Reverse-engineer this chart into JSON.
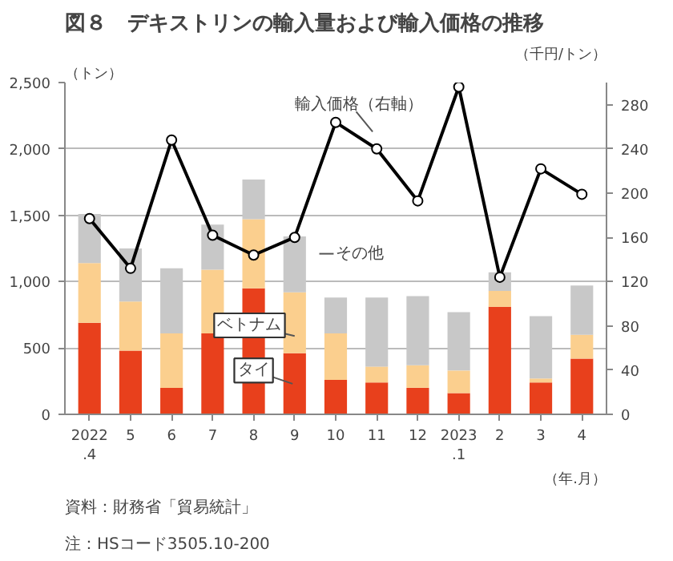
{
  "chart_data": {
    "type": "bar",
    "stacked": true,
    "title": "図８　デキストリンの輸入量および輸入価格の推移",
    "categories": [
      "2022\n.4",
      "5",
      "6",
      "7",
      "8",
      "9",
      "10",
      "11",
      "12",
      "2023\n.1",
      "2",
      "3",
      "4"
    ],
    "series": [
      {
        "name": "タイ",
        "color": "#e8401c",
        "values": [
          690,
          480,
          200,
          610,
          950,
          460,
          260,
          240,
          200,
          160,
          810,
          240,
          420
        ]
      },
      {
        "name": "ベトナム",
        "color": "#fbcf8e",
        "values": [
          450,
          370,
          410,
          480,
          520,
          460,
          350,
          120,
          170,
          170,
          120,
          30,
          180
        ]
      },
      {
        "name": "その他",
        "color": "#c8c8c8",
        "values": [
          370,
          400,
          490,
          340,
          300,
          420,
          270,
          520,
          520,
          440,
          140,
          470,
          370
        ]
      },
      {
        "name": "輸入価格（右軸）",
        "type": "line",
        "axis": "y2",
        "color": "#000000",
        "marker": "circle",
        "values": [
          177,
          132,
          248,
          162,
          144,
          160,
          264,
          240,
          193,
          296,
          124,
          222,
          199
        ]
      }
    ],
    "ylim": [
      0,
      2500
    ],
    "yticks": [
      0,
      {
        "value": 500,
        "label": "500"
      },
      {
        "value": 1000,
        "label": "1,000"
      },
      {
        "value": 1500,
        "label": "1,500"
      },
      {
        "value": 2000,
        "label": "2,000"
      },
      {
        "value": 2500,
        "label": "2,500"
      }
    ],
    "y2lim": [
      0,
      300
    ],
    "y2ticks": [
      0,
      40,
      80,
      120,
      160,
      200,
      240,
      280
    ],
    "ylabel": "（トン）",
    "y2label": "（千円/トン）",
    "xlabel": "（年.月）",
    "grid": "y",
    "annotations": [
      "資料：財務省「貿易統計」",
      "注：HSコード3505.10-200"
    ]
  }
}
